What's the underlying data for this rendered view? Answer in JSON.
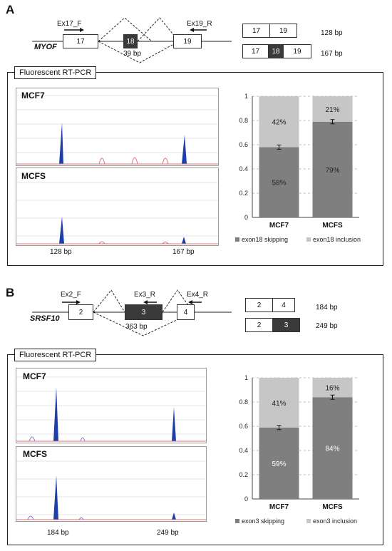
{
  "panelA": {
    "letter": "A",
    "gene": "MYOF",
    "primers": {
      "fwd": "Ex17_F",
      "rev": "Ex19_R"
    },
    "exons": [
      "17",
      "18",
      "19"
    ],
    "intron_label": "39 bp",
    "products": [
      {
        "exons": [
          "17",
          "19"
        ],
        "size": "128 bp"
      },
      {
        "exons": [
          "17",
          "18",
          "19"
        ],
        "size": "167 bp"
      }
    ],
    "box_title": "Fluorescent RT-PCR",
    "traces": [
      "MCF7",
      "MCFS"
    ],
    "peak_labels": [
      "128 bp",
      "167 bp"
    ]
  },
  "panelB": {
    "letter": "B",
    "gene": "SRSF10",
    "primers": {
      "fwd": "Ex2_F",
      "rev1": "Ex3_R",
      "rev2": "Ex4_R"
    },
    "exons": [
      "2",
      "3",
      "4"
    ],
    "intron_label": "363 bp",
    "products": [
      {
        "exons": [
          "2",
          "4"
        ],
        "size": "184 bp"
      },
      {
        "exons": [
          "2",
          "3"
        ],
        "size": "249 bp"
      }
    ],
    "box_title": "Fluorescent RT-PCR",
    "traces": [
      "MCF7",
      "MCFS"
    ],
    "peak_labels": [
      "184 bp",
      "249 bp"
    ]
  },
  "colors": {
    "skip": "#7f7f7f",
    "incl": "#c6c6c6",
    "peak": "#1f3fa8",
    "ladder": "#e07070"
  },
  "chart_data": [
    {
      "type": "bar",
      "stacked": true,
      "categories": [
        "MCF7",
        "MCFS"
      ],
      "series": [
        {
          "name": "exon18 skipping",
          "values": [
            0.58,
            0.79
          ],
          "labels": [
            "58%",
            "79%"
          ]
        },
        {
          "name": "exon18 inclusion",
          "values": [
            0.42,
            0.21
          ],
          "labels": [
            "42%",
            "21%"
          ]
        }
      ],
      "ylim": [
        0,
        1
      ],
      "yticks": [
        "0",
        "0.2",
        "0.4",
        "0.6",
        "0.8",
        "1"
      ],
      "grid": true,
      "legend": "bottom"
    },
    {
      "type": "bar",
      "stacked": true,
      "categories": [
        "MCF7",
        "MCFS"
      ],
      "series": [
        {
          "name": "exon3 skipping",
          "values": [
            0.59,
            0.84
          ],
          "labels": [
            "59%",
            "84%"
          ]
        },
        {
          "name": "exon3 inclusion",
          "values": [
            0.41,
            0.16
          ],
          "labels": [
            "41%",
            "16%"
          ]
        }
      ],
      "ylim": [
        0,
        1
      ],
      "yticks": [
        "0",
        "0.2",
        "0.4",
        "0.6",
        "0.8",
        "1"
      ],
      "grid": true,
      "legend": "bottom"
    }
  ]
}
